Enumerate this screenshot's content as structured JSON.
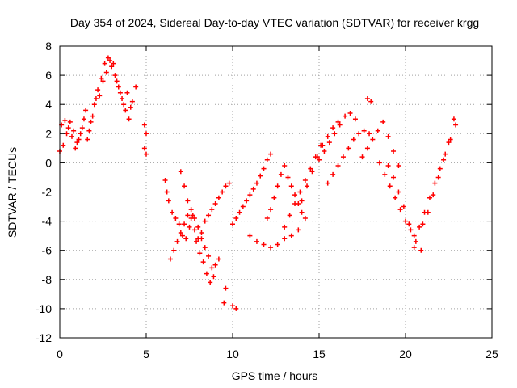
{
  "chart_data": {
    "type": "scatter",
    "title": "Day 354 of 2024, Sidereal Day-to-day VTEC variation (SDTVAR) for receiver krgg",
    "xlabel": "GPS time / hours",
    "ylabel": "SDTVAR / TECUs",
    "xlim": [
      0,
      25
    ],
    "ylim": [
      -12,
      8
    ],
    "xticks": [
      "0",
      "5",
      "10",
      "15",
      "20",
      "25"
    ],
    "yticks": [
      "-12",
      "-10",
      "-8",
      "-6",
      "-4",
      "-2",
      "0",
      "2",
      "4",
      "6",
      "8"
    ],
    "grid": true,
    "marker": "+",
    "marker_color": "#ff0000",
    "series": [
      {
        "name": "SDTVAR",
        "x": [
          0.0,
          0.2,
          0.4,
          0.6,
          0.8,
          1.0,
          1.2,
          1.4,
          1.6,
          1.8,
          2.0,
          2.2,
          2.4,
          2.6,
          2.8,
          3.0,
          3.2,
          3.4,
          3.6,
          3.8,
          4.0,
          4.2,
          4.4,
          0.1,
          0.3,
          0.5,
          0.7,
          0.9,
          1.1,
          1.3,
          1.5,
          1.7,
          1.9,
          2.1,
          2.3,
          2.5,
          2.7,
          2.9,
          3.1,
          3.3,
          3.5,
          3.7,
          3.9,
          4.1,
          4.9,
          5.0,
          4.9,
          5.0,
          6.1,
          6.2,
          6.3,
          6.5,
          6.7,
          6.9,
          7.1,
          7.3,
          7.5,
          7.7,
          7.9,
          8.1,
          8.3,
          8.5,
          8.7,
          8.9,
          6.4,
          6.6,
          6.8,
          7.0,
          7.2,
          7.4,
          7.6,
          7.8,
          8.0,
          8.2,
          8.4,
          8.6,
          8.8,
          9.0,
          9.2,
          7.0,
          7.2,
          7.4,
          7.6,
          7.8,
          8.0,
          8.2,
          8.4,
          8.6,
          8.8,
          9.0,
          9.2,
          9.4,
          9.6,
          9.8,
          9.5,
          9.6,
          10.0,
          10.2,
          10.0,
          10.2,
          10.4,
          10.6,
          10.8,
          11.0,
          11.2,
          11.4,
          11.6,
          11.8,
          12.0,
          12.2,
          11.0,
          11.4,
          11.8,
          12.2,
          12.6,
          13.0,
          13.4,
          13.8,
          12.0,
          12.2,
          12.4,
          12.6,
          12.8,
          13.0,
          13.2,
          13.4,
          13.6,
          13.8,
          14.0,
          14.2,
          13.0,
          13.3,
          13.6,
          13.9,
          14.2,
          14.5,
          14.8,
          15.1,
          14.0,
          14.3,
          14.6,
          14.9,
          15.2,
          15.5,
          15.8,
          16.1,
          15.0,
          15.3,
          15.6,
          15.9,
          16.2,
          16.5,
          16.8,
          17.1,
          15.5,
          15.8,
          16.1,
          16.4,
          16.7,
          17.0,
          17.3,
          17.6,
          17.9,
          17.5,
          17.8,
          18.1,
          18.4,
          18.7,
          19.0,
          19.3,
          19.6,
          18.5,
          18.8,
          19.1,
          19.4,
          19.7,
          20.0,
          20.3,
          20.6,
          20.9,
          19.0,
          19.3,
          19.6,
          19.9,
          20.2,
          20.5,
          20.5,
          20.8,
          21.1,
          21.4,
          21.7,
          22.0,
          22.3,
          22.6,
          22.9,
          21.0,
          21.3,
          21.6,
          21.9,
          22.2,
          22.5,
          22.8,
          17.8,
          18.0
        ],
        "y": [
          0.8,
          1.2,
          2.0,
          2.8,
          2.2,
          1.4,
          2.0,
          3.0,
          1.6,
          2.8,
          4.0,
          5.0,
          5.8,
          6.8,
          7.2,
          6.6,
          6.0,
          5.2,
          4.4,
          3.6,
          3.0,
          4.2,
          5.2,
          2.6,
          2.9,
          2.4,
          1.8,
          1.0,
          1.6,
          2.4,
          3.6,
          2.2,
          3.2,
          4.4,
          4.6,
          5.6,
          6.2,
          7.0,
          6.8,
          5.6,
          4.8,
          4.0,
          4.8,
          3.8,
          2.6,
          2.0,
          1.0,
          0.6,
          -1.2,
          -2.0,
          -2.6,
          -3.4,
          -3.8,
          -4.2,
          -5.0,
          -5.2,
          -4.4,
          -3.6,
          -5.4,
          -6.2,
          -6.8,
          -7.6,
          -8.2,
          -7.8,
          -6.6,
          -6.0,
          -5.4,
          -4.8,
          -4.2,
          -3.6,
          -3.2,
          -3.8,
          -4.4,
          -5.2,
          -5.8,
          -6.4,
          -7.2,
          -7.0,
          -6.6,
          -0.6,
          -1.6,
          -2.6,
          -3.8,
          -4.6,
          -5.2,
          -4.8,
          -4.0,
          -3.6,
          -3.2,
          -2.8,
          -2.4,
          -2.0,
          -1.6,
          -1.4,
          -9.6,
          -8.6,
          -9.8,
          -10.0,
          -4.2,
          -3.8,
          -3.4,
          -3.0,
          -2.6,
          -2.2,
          -1.8,
          -1.4,
          -0.9,
          -0.4,
          0.2,
          0.6,
          -5.0,
          -5.4,
          -5.6,
          -5.8,
          -5.6,
          -5.2,
          -5.0,
          -4.6,
          -3.8,
          -3.2,
          -2.4,
          -1.6,
          -0.8,
          -0.2,
          -1.0,
          -1.6,
          -2.2,
          -2.8,
          -3.4,
          -3.8,
          -4.4,
          -3.6,
          -2.8,
          -2.0,
          -1.2,
          -0.4,
          0.4,
          1.2,
          -2.6,
          -1.6,
          -0.6,
          0.4,
          1.2,
          1.8,
          2.4,
          2.8,
          0.2,
          0.8,
          1.4,
          2.0,
          2.6,
          3.2,
          3.4,
          3.0,
          -1.4,
          -0.8,
          -0.2,
          0.4,
          1.0,
          1.6,
          2.0,
          2.2,
          2.0,
          0.4,
          1.0,
          1.6,
          2.2,
          2.8,
          1.8,
          0.8,
          -0.2,
          0.0,
          -0.8,
          -1.6,
          -2.4,
          -3.2,
          -4.0,
          -4.6,
          -5.4,
          -6.0,
          -0.2,
          -1.0,
          -2.0,
          -3.0,
          -4.2,
          -5.0,
          -5.8,
          -4.4,
          -3.4,
          -2.4,
          -1.4,
          -0.4,
          0.6,
          1.6,
          2.6,
          -4.2,
          -3.4,
          -2.2,
          -1.0,
          0.2,
          1.4,
          3.0,
          4.4,
          4.2
        ]
      }
    ]
  }
}
